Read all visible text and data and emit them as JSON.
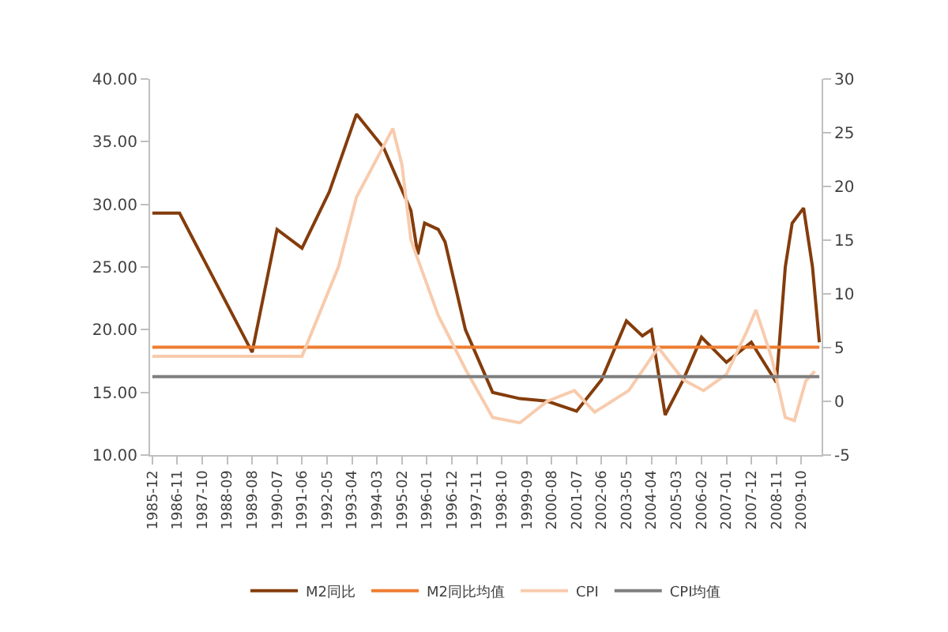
{
  "chart_data": {
    "type": "line",
    "xlim": [
      "1985-11",
      "2010-07"
    ],
    "xticks": [
      {
        "value": "1985-12",
        "label": "1985-12"
      },
      {
        "value": "1986-11",
        "label": "1986-11"
      },
      {
        "value": "1987-10",
        "label": "1987-10"
      },
      {
        "value": "1988-09",
        "label": "1988-09"
      },
      {
        "value": "1989-08",
        "label": "1989-08"
      },
      {
        "value": "1990-07",
        "label": "1990-07"
      },
      {
        "value": "1991-06",
        "label": "1991-06"
      },
      {
        "value": "1992-05",
        "label": "1992-05"
      },
      {
        "value": "1993-04",
        "label": "1993-04"
      },
      {
        "value": "1994-03",
        "label": "1994-03"
      },
      {
        "value": "1995-02",
        "label": "1995-02"
      },
      {
        "value": "1996-01",
        "label": "1996-01"
      },
      {
        "value": "1996-12",
        "label": "1996-12"
      },
      {
        "value": "1997-11",
        "label": "1997-11"
      },
      {
        "value": "1998-10",
        "label": "1998-10"
      },
      {
        "value": "1999-09",
        "label": "1999-09"
      },
      {
        "value": "2000-08",
        "label": "2000-08"
      },
      {
        "value": "2001-07",
        "label": "2001-07"
      },
      {
        "value": "2002-06",
        "label": "2002-06"
      },
      {
        "value": "2003-05",
        "label": "2003-05"
      },
      {
        "value": "2004-04",
        "label": "2004-04"
      },
      {
        "value": "2005-03",
        "label": "2005-03"
      },
      {
        "value": "2006-02",
        "label": "2006-02"
      },
      {
        "value": "2007-01",
        "label": "2007-01"
      },
      {
        "value": "2007-12",
        "label": "2007-12"
      },
      {
        "value": "2008-11",
        "label": "2008-11"
      },
      {
        "value": "2009-10",
        "label": "2009-10"
      }
    ],
    "ylim": [
      10,
      40
    ],
    "yticks": [
      {
        "value": 10,
        "label": "10.00"
      },
      {
        "value": 15,
        "label": "15.00"
      },
      {
        "value": 20,
        "label": "20.00"
      },
      {
        "value": 25,
        "label": "25.00"
      },
      {
        "value": 30,
        "label": "30.00"
      },
      {
        "value": 35,
        "label": "35.00"
      },
      {
        "value": 40,
        "label": "40.00"
      }
    ],
    "y2lim": [
      -5,
      30
    ],
    "y2ticks": [
      -5,
      0,
      5,
      10,
      15,
      20,
      25,
      30
    ],
    "legend": "bottom",
    "marker": "none",
    "line_style": "solid",
    "series": [
      {
        "name": "M2同比",
        "color": "#843c0c",
        "x": [
          "1985-12",
          "1986-12",
          "1989-08",
          "1990-07",
          "1991-06",
          "1992-06",
          "1993-06",
          "1994-06",
          "1995-06",
          "1995-09",
          "1995-12",
          "1996-06",
          "1996-09",
          "1997-06",
          "1998-06",
          "1999-06",
          "2000-06",
          "2001-07",
          "2002-06",
          "2003-05",
          "2003-12",
          "2004-04",
          "2004-10",
          "2005-06",
          "2006-02",
          "2007-01",
          "2007-12",
          "2008-11",
          "2009-03",
          "2009-06",
          "2009-11",
          "2010-03",
          "2010-06"
        ],
        "values": [
          29.3,
          29.3,
          18.2,
          28,
          26.5,
          31,
          37.2,
          34.5,
          29.5,
          26,
          28.5,
          28,
          27,
          20,
          15,
          14.5,
          14.3,
          13.5,
          16,
          20.7,
          19.5,
          20,
          13.2,
          16,
          19.4,
          17.4,
          19,
          15.8,
          25,
          28.5,
          29.7,
          25,
          19
        ]
      },
      {
        "name": "M2同比均值",
        "color": "#ed7d31",
        "x": [
          "1985-12",
          "2010-06"
        ],
        "values": [
          18.6,
          18.6
        ]
      },
      {
        "name": "CPI",
        "color": "#f8cbad",
        "axis": "y2",
        "x": [
          "1985-12",
          "1991-06",
          "1992-10",
          "1993-06",
          "1994-10",
          "1995-02",
          "1995-06",
          "1996-06",
          "1997-06",
          "1998-06",
          "1999-06",
          "2000-06",
          "2001-06",
          "2002-03",
          "2003-06",
          "2004-07",
          "2005-06",
          "2006-03",
          "2007-01",
          "2007-10",
          "2008-02",
          "2008-09",
          "2008-12",
          "2009-03",
          "2009-07",
          "2009-12",
          "2010-04"
        ],
        "values": [
          4.2,
          4.2,
          12.5,
          19,
          25.4,
          22,
          15,
          8,
          3,
          -1.5,
          -2,
          0,
          1,
          -1,
          1,
          5,
          2,
          1,
          2.5,
          6.5,
          8.5,
          4,
          1.2,
          -1.5,
          -1.8,
          1.9,
          2.8
        ]
      },
      {
        "name": "CPI均值",
        "color": "#7f7f7f",
        "axis": "y2",
        "x": [
          "1985-12",
          "2010-06"
        ],
        "values": [
          2.3,
          2.3
        ]
      }
    ]
  }
}
